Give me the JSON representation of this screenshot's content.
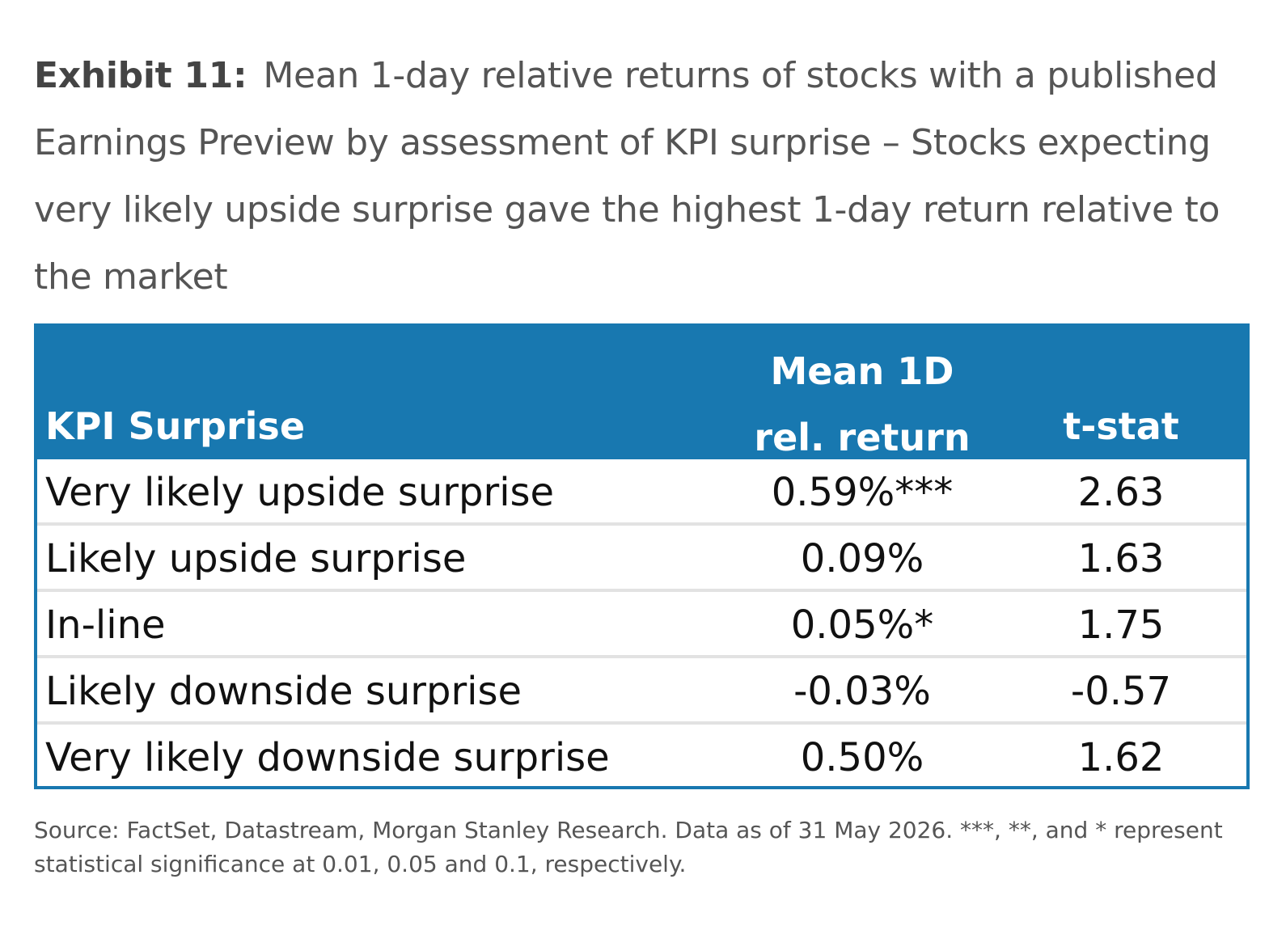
{
  "exhibit": {
    "label": "Exhibit 11:",
    "title": "Mean 1-day relative returns of stocks with a published Earnings Preview by assessment of KPI surprise – Stocks expecting very likely upside surprise gave the highest 1-day return relative to the market"
  },
  "table": {
    "headers": {
      "kpi": "KPI Surprise",
      "mean_line1": "Mean 1D",
      "mean_line2": "rel. return",
      "tstat": "t-stat"
    },
    "rows": [
      {
        "kpi": "Very likely upside surprise",
        "mean": "0.59%***",
        "tstat": "2.63"
      },
      {
        "kpi": "Likely upside surprise",
        "mean": "0.09%",
        "tstat": "1.63"
      },
      {
        "kpi": "In-line",
        "mean": "0.05%*",
        "tstat": "1.75"
      },
      {
        "kpi": "Likely downside surprise",
        "mean": "-0.03%",
        "tstat": "-0.57"
      },
      {
        "kpi": "Very likely downside surprise",
        "mean": "0.50%",
        "tstat": "1.62"
      }
    ]
  },
  "source": "Source: FactSet, Datastream, Morgan Stanley Research. Data as of 31 May 2026. ***, **, and * represent statistical significance at 0.01, 0.05 and 0.1, respectively.",
  "colors": {
    "header_bg": "#1878b0",
    "header_text": "#ffffff",
    "row_divider": "#e2e2e2"
  }
}
